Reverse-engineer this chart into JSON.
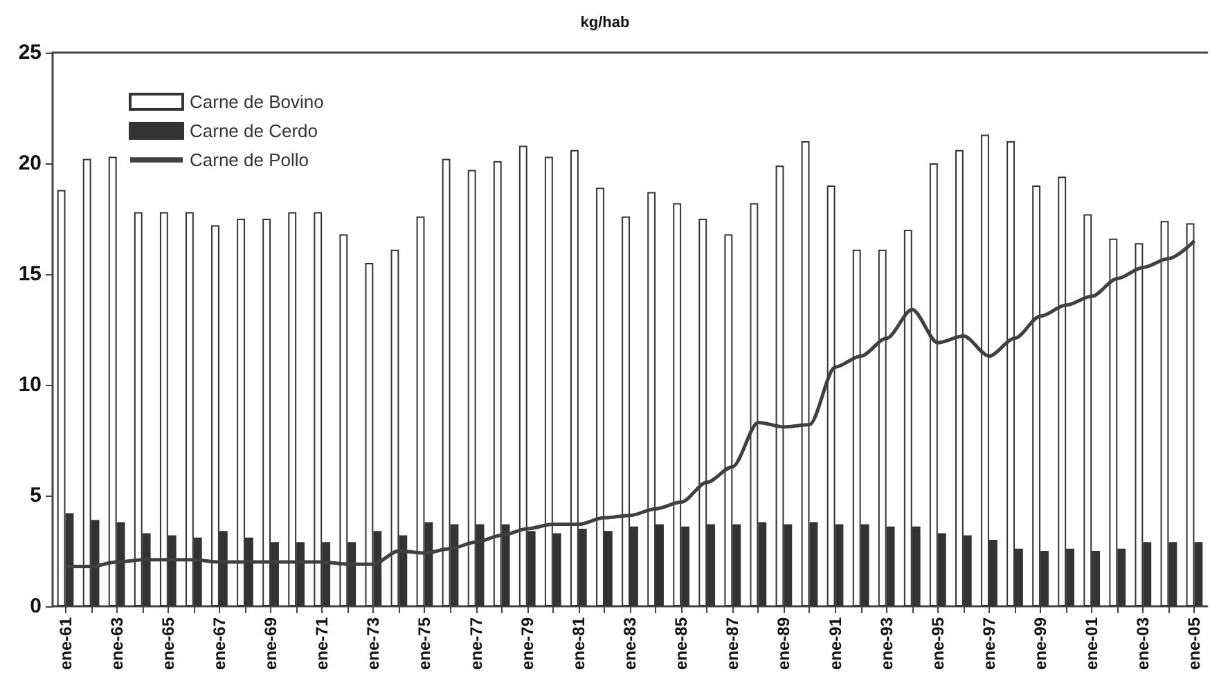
{
  "chart_data": {
    "type": "bar",
    "title": "kg/hab",
    "categories": [
      "ene-61",
      null,
      "ene-63",
      null,
      "ene-65",
      null,
      "ene-67",
      null,
      "ene-69",
      null,
      "ene-71",
      null,
      "ene-73",
      null,
      "ene-75",
      null,
      "ene-77",
      null,
      "ene-79",
      null,
      "ene-81",
      null,
      "ene-83",
      null,
      "ene-85",
      null,
      "ene-87",
      null,
      "ene-89",
      null,
      "ene-91",
      null,
      "ene-93",
      null,
      "ene-95",
      null,
      "ene-97",
      null,
      "ene-99",
      null,
      "ene-01",
      null,
      "ene-03",
      null,
      "ene-05"
    ],
    "series": [
      {
        "name": "Carne de Bovino",
        "color": "#ffffff",
        "values": [
          18.8,
          20.2,
          20.3,
          17.8,
          17.8,
          17.8,
          17.2,
          17.5,
          17.5,
          17.8,
          17.8,
          16.8,
          15.5,
          16.1,
          17.6,
          20.2,
          19.7,
          20.1,
          20.8,
          20.3,
          20.6,
          18.9,
          17.6,
          18.7,
          18.2,
          17.5,
          16.8,
          18.2,
          19.9,
          21.0,
          19.0,
          16.1,
          16.1,
          17.0,
          20.0,
          20.6,
          21.3,
          21.0,
          19.0,
          19.4,
          17.7,
          16.6,
          16.4,
          17.4,
          17.3
        ]
      },
      {
        "name": "Carne de Cerdo",
        "color": "#333333",
        "values": [
          4.2,
          3.9,
          3.8,
          3.3,
          3.2,
          3.1,
          3.4,
          3.1,
          2.9,
          2.9,
          2.9,
          2.9,
          3.4,
          3.2,
          3.8,
          3.7,
          3.7,
          3.7,
          3.4,
          3.3,
          3.5,
          3.4,
          3.6,
          3.7,
          3.6,
          3.7,
          3.7,
          3.8,
          3.7,
          3.8,
          3.7,
          3.7,
          3.6,
          3.6,
          3.3,
          3.2,
          3.0,
          2.6,
          2.5,
          2.6,
          2.5,
          2.6,
          2.9,
          2.9,
          2.9
        ]
      },
      {
        "name": "Carne de Pollo",
        "type": "line",
        "color": "#404040",
        "values": [
          1.8,
          1.8,
          2.0,
          2.1,
          2.1,
          2.1,
          2.0,
          2.0,
          2.0,
          2.0,
          2.0,
          1.9,
          1.9,
          2.5,
          2.4,
          2.6,
          2.9,
          3.2,
          3.5,
          3.7,
          3.7,
          4.0,
          4.1,
          4.4,
          4.7,
          5.6,
          6.3,
          8.3,
          8.1,
          8.2,
          10.8,
          11.3,
          12.1,
          13.4,
          11.9,
          12.2,
          11.3,
          12.1,
          13.1,
          13.6,
          14.0,
          14.8,
          15.3,
          15.7,
          16.5
        ]
      }
    ],
    "ylim": [
      0,
      25
    ],
    "yticks": [
      0,
      5,
      10,
      15,
      20,
      25
    ],
    "grid": false,
    "legend": "top left",
    "marker": "none",
    "line_style": "solid"
  }
}
